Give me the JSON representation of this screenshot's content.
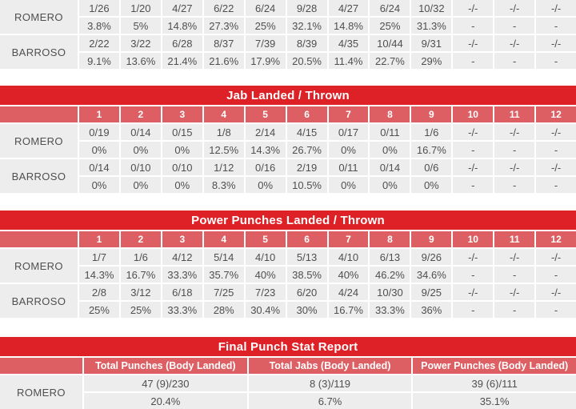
{
  "colors": {
    "title_bar_red": "#de2126",
    "header_row_red": "#dd5f63",
    "cell_gray": "#ededed",
    "text_gray": "#4f4f4f",
    "header_text": "#ffffff",
    "page_background": "#ffffff"
  },
  "rounds": [
    "1",
    "2",
    "3",
    "4",
    "5",
    "6",
    "7",
    "8",
    "9",
    "10",
    "11",
    "12"
  ],
  "tables": {
    "top_table": {
      "rows": [
        {
          "fighter": "ROMERO",
          "landed": [
            "1/26",
            "1/20",
            "4/27",
            "6/22",
            "6/24",
            "9/28",
            "4/27",
            "6/24",
            "10/32",
            "-/-",
            "-/-",
            "-/-"
          ],
          "pct": [
            "3.8%",
            "5%",
            "14.8%",
            "27.3%",
            "25%",
            "32.1%",
            "14.8%",
            "25%",
            "31.3%",
            "-",
            "-",
            "-"
          ]
        },
        {
          "fighter": "BARROSO",
          "landed": [
            "2/22",
            "3/22",
            "6/28",
            "8/37",
            "7/39",
            "8/39",
            "4/35",
            "10/44",
            "9/31",
            "-/-",
            "-/-",
            "-/-"
          ],
          "pct": [
            "9.1%",
            "13.6%",
            "21.4%",
            "21.6%",
            "17.9%",
            "20.5%",
            "11.4%",
            "22.7%",
            "29%",
            "-",
            "-",
            "-"
          ]
        }
      ]
    },
    "jab": {
      "title": "Jab Landed / Thrown",
      "rows": [
        {
          "fighter": "ROMERO",
          "landed": [
            "0/19",
            "0/14",
            "0/15",
            "1/8",
            "2/14",
            "4/15",
            "0/17",
            "0/11",
            "1/6",
            "-/-",
            "-/-",
            "-/-"
          ],
          "pct": [
            "0%",
            "0%",
            "0%",
            "12.5%",
            "14.3%",
            "26.7%",
            "0%",
            "0%",
            "16.7%",
            "-",
            "-",
            "-"
          ]
        },
        {
          "fighter": "BARROSO",
          "landed": [
            "0/14",
            "0/10",
            "0/10",
            "1/12",
            "0/16",
            "2/19",
            "0/11",
            "0/14",
            "0/6",
            "-/-",
            "-/-",
            "-/-"
          ],
          "pct": [
            "0%",
            "0%",
            "0%",
            "8.3%",
            "0%",
            "10.5%",
            "0%",
            "0%",
            "0%",
            "-",
            "-",
            "-"
          ]
        }
      ]
    },
    "power": {
      "title": "Power Punches Landed / Thrown",
      "rows": [
        {
          "fighter": "ROMERO",
          "landed": [
            "1/7",
            "1/6",
            "4/12",
            "5/14",
            "4/10",
            "5/13",
            "4/10",
            "6/13",
            "9/26",
            "-/-",
            "-/-",
            "-/-"
          ],
          "pct": [
            "14.3%",
            "16.7%",
            "33.3%",
            "35.7%",
            "40%",
            "38.5%",
            "40%",
            "46.2%",
            "34.6%",
            "-",
            "-",
            "-"
          ]
        },
        {
          "fighter": "BARROSO",
          "landed": [
            "2/8",
            "3/12",
            "6/18",
            "7/25",
            "7/23",
            "6/20",
            "4/24",
            "10/30",
            "9/25",
            "-/-",
            "-/-",
            "-/-"
          ],
          "pct": [
            "25%",
            "25%",
            "33.3%",
            "28%",
            "30.4%",
            "30%",
            "16.7%",
            "33.3%",
            "36%",
            "-",
            "-",
            "-"
          ]
        }
      ]
    },
    "final": {
      "title": "Final Punch Stat Report",
      "columns": [
        "Total Punches (Body Landed)",
        "Total Jabs (Body Landed)",
        "Power Punches (Body Landed)"
      ],
      "rows": [
        {
          "fighter": "ROMERO",
          "values": [
            "47 (9)/230",
            "8 (3)/119",
            "39 (6)/111"
          ],
          "pct": [
            "20.4%",
            "6.7%",
            "35.1%"
          ]
        }
      ]
    }
  }
}
